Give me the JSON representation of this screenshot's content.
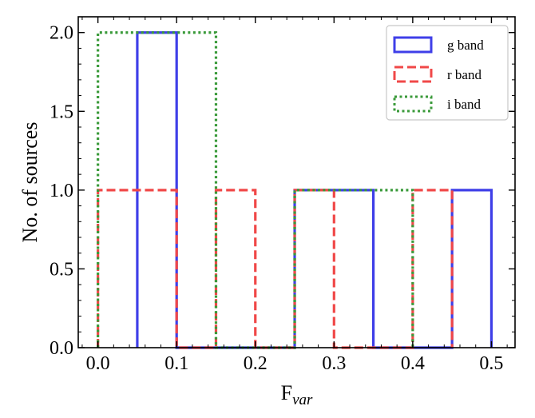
{
  "chart_data": {
    "type": "histogram",
    "xlabel": "F",
    "xlabel_sub": "var",
    "ylabel": "No. of sources",
    "xlim": [
      -0.025,
      0.53
    ],
    "ylim": [
      0,
      2.1
    ],
    "x_ticks": [
      0.0,
      0.1,
      0.2,
      0.3,
      0.4,
      0.5
    ],
    "x_tick_labels": [
      "0.0",
      "0.1",
      "0.2",
      "0.3",
      "0.4",
      "0.5"
    ],
    "y_ticks": [
      0.0,
      0.5,
      1.0,
      1.5,
      2.0
    ],
    "y_tick_labels": [
      "0.0",
      "0.5",
      "1.0",
      "1.5",
      "2.0"
    ],
    "x_minor_step": 0.02,
    "y_minor_step": 0.1,
    "legend_position": "top-right",
    "series": [
      {
        "name": "g band",
        "color": "#3f3fe8",
        "style": "solid",
        "bin_edges": [
          0.05,
          0.1,
          0.15,
          0.2,
          0.25,
          0.3,
          0.35,
          0.4,
          0.45,
          0.5
        ],
        "counts": [
          2,
          0,
          0,
          0,
          1,
          1,
          0,
          0,
          1
        ]
      },
      {
        "name": "r band",
        "color": "#f04848",
        "style": "dashed",
        "bin_edges": [
          0.0,
          0.05,
          0.1,
          0.15,
          0.2,
          0.25,
          0.3,
          0.35,
          0.4,
          0.45
        ],
        "counts": [
          1,
          1,
          0,
          1,
          0,
          1,
          0,
          0,
          1
        ]
      },
      {
        "name": "i band",
        "color": "#3a9a3a",
        "style": "dotted",
        "bin_edges": [
          0.0,
          0.05,
          0.1,
          0.15,
          0.2,
          0.25,
          0.3,
          0.35,
          0.4
        ],
        "counts": [
          2,
          2,
          2,
          0,
          0,
          1,
          1,
          1
        ]
      }
    ]
  }
}
